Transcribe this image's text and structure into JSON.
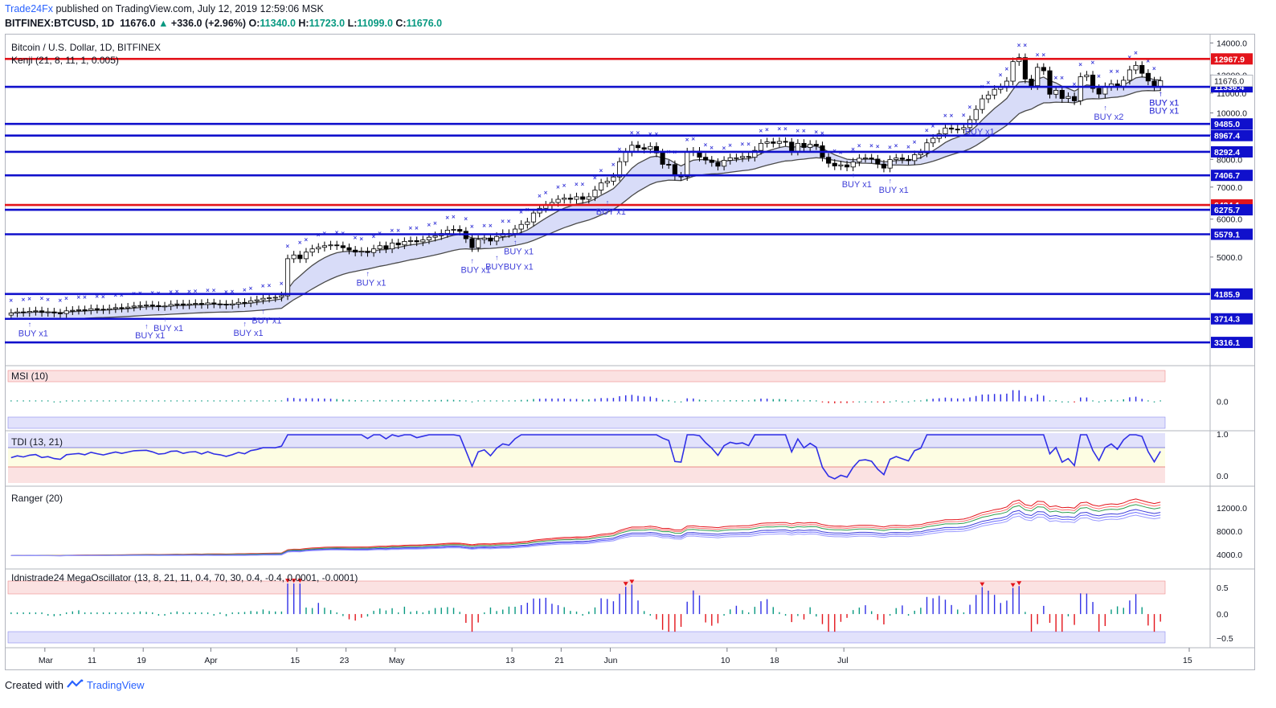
{
  "header": {
    "publisher": "Trade24Fx",
    "published_text": "published on TradingView.com, July 12, 2019 12:59:06 MSK",
    "symbol": "BITFINEX:BTCUSD, 1D",
    "last": "11676.0",
    "change": "+336.0 (+2.96%)",
    "o_label": "O:",
    "o_val": "11340.0",
    "h_label": "H:",
    "h_val": "11723.0",
    "l_label": "L:",
    "l_val": "11099.0",
    "c_label": "C:",
    "c_val": "11676.0"
  },
  "footer": {
    "created_with": "Created with",
    "brand": "TradingView"
  },
  "colors": {
    "red_level": "#e3141b",
    "blue_level": "#1010cc",
    "up": "#ffffff",
    "down": "#000000",
    "marker": "#3f3fd9",
    "indicator_blue": "#2f2fe6"
  },
  "chart_data": {
    "type": "candlestick",
    "title": "Bitcoin / U.S. Dollar, 1D, BITFINEX",
    "indicator_main": "Kenji (21, 8, 11, 1, 0.005)",
    "y_axis": {
      "min": 3000,
      "max": 14300,
      "ticks": [
        5000,
        6000,
        7000,
        8000,
        9000,
        10000,
        11000,
        12000,
        14000
      ]
    },
    "x_ticks": [
      "Mar",
      "11",
      "19",
      "Apr",
      "15",
      "23",
      "May",
      "13",
      "21",
      "Jun",
      "10",
      "18",
      "Jul",
      "15"
    ],
    "price_labels": [
      "14000.0",
      "12000.0",
      "11000.0",
      "10000.0",
      "9000.0",
      "8000.0",
      "7000.0",
      "6000.0",
      "5000.0",
      "4000.0"
    ],
    "current_price": "11676.0",
    "levels": [
      {
        "value": 12967.9,
        "label": "12967.9",
        "color": "red"
      },
      {
        "value": 11336.4,
        "label": "11336.4",
        "color": "blue"
      },
      {
        "value": 9485.0,
        "label": "9485.0",
        "color": "blue"
      },
      {
        "value": 8967.4,
        "label": "8967.4",
        "color": "blue"
      },
      {
        "value": 8292.4,
        "label": "8292.4",
        "color": "blue"
      },
      {
        "value": 7406.7,
        "label": "7406.7",
        "color": "blue"
      },
      {
        "value": 6424.1,
        "label": "6424.1",
        "color": "red"
      },
      {
        "value": 6275.7,
        "label": "6275.7",
        "color": "blue"
      },
      {
        "value": 5579.1,
        "label": "5579.1",
        "color": "blue"
      },
      {
        "value": 4185.9,
        "label": "4185.9",
        "color": "blue"
      },
      {
        "value": 3714.3,
        "label": "3714.3",
        "color": "blue"
      },
      {
        "value": 3316.1,
        "label": "3316.1",
        "color": "blue"
      }
    ],
    "closes": [
      3820,
      3840,
      3830,
      3850,
      3860,
      3830,
      3840,
      3820,
      3810,
      3860,
      3870,
      3880,
      3870,
      3900,
      3890,
      3880,
      3900,
      3920,
      3910,
      3930,
      3950,
      3960,
      3970,
      3960,
      3940,
      3950,
      3980,
      3990,
      3970,
      3990,
      4000,
      3980,
      4010,
      3990,
      3985,
      3970,
      3990,
      4020,
      4010,
      4050,
      4070,
      4100,
      4110,
      4120,
      4150,
      4960,
      5050,
      4960,
      5120,
      5200,
      5240,
      5280,
      5300,
      5280,
      5230,
      5170,
      5120,
      5140,
      5110,
      5200,
      5280,
      5200,
      5350,
      5300,
      5390,
      5410,
      5380,
      5430,
      5500,
      5540,
      5600,
      5690,
      5710,
      5660,
      5460,
      5230,
      5440,
      5480,
      5400,
      5520,
      5600,
      5600,
      5720,
      5850,
      5920,
      6180,
      6320,
      6420,
      6500,
      6600,
      6640,
      6600,
      6680,
      6600,
      6680,
      6900,
      7140,
      7200,
      7350,
      7910,
      8280,
      8560,
      8460,
      8400,
      8510,
      8250,
      7810,
      7800,
      7380,
      7360,
      8290,
      8320,
      8080,
      7970,
      7880,
      7740,
      7960,
      8060,
      8060,
      8110,
      8080,
      8350,
      8640,
      8700,
      8640,
      8720,
      8690,
      8320,
      8640,
      8470,
      8600,
      8540,
      8080,
      7850,
      7750,
      7790,
      7710,
      7900,
      8040,
      8050,
      8010,
      7820,
      7670,
      7990,
      8050,
      8000,
      7950,
      8180,
      8250,
      8660,
      8850,
      9040,
      9300,
      9250,
      9240,
      9320,
      9680,
      10170,
      10700,
      10900,
      11200,
      11300,
      11650,
      12800,
      13050,
      11770,
      11400,
      12450,
      12250,
      10940,
      11150,
      10720,
      10820,
      10600,
      11900,
      12000,
      11250,
      10950,
      11350,
      11500,
      11370,
      11700,
      12300,
      12570,
      12100,
      11660,
      11340,
      11676
    ],
    "panels": [
      {
        "name": "MSI (10)",
        "ticks": [
          "0.0"
        ]
      },
      {
        "name": "TDI (13, 21)",
        "ticks": [
          "1.0",
          "0.0"
        ]
      },
      {
        "name": "Ranger (20)",
        "ticks": [
          "12000.0",
          "8000.0",
          "4000.0"
        ]
      },
      {
        "name": "Idnistrade24 MegaOscillator (13, 8, 21, 11, 0.4, 70, 30, 0.4, -0.4, 0.0001, -0.0001)",
        "ticks": [
          "0.5",
          "0.0",
          "−0.5"
        ]
      }
    ],
    "buy_signals": [
      {
        "text": "BUY x1",
        "index": 3
      },
      {
        "text": "BUY x1",
        "index": 22
      },
      {
        "text": "BUY x1",
        "index": 25
      },
      {
        "text": "BUY x1",
        "index": 38
      },
      {
        "text": "BUY x1",
        "index": 41
      },
      {
        "text": "BUY x1",
        "index": 58
      },
      {
        "text": "BUY x1",
        "index": 75
      },
      {
        "text": "BUYBUY x1",
        "index": 79
      },
      {
        "text": "BUY x1",
        "index": 82
      },
      {
        "text": "BUY x1",
        "index": 97
      },
      {
        "text": "BUY x1",
        "index": 137
      },
      {
        "text": "BUY x1",
        "index": 143
      },
      {
        "text": "BUY x1",
        "index": 157
      },
      {
        "text": "BUY x2",
        "index": 178
      },
      {
        "text": "BUY x1",
        "index": 204
      },
      {
        "text": "BUY x1",
        "index": 212
      },
      {
        "text": "BUY x1",
        "index": 214
      },
      {
        "text": "BUY x1",
        "index": 212
      },
      {
        "text": "BUY x1",
        "index": 229
      }
    ]
  }
}
